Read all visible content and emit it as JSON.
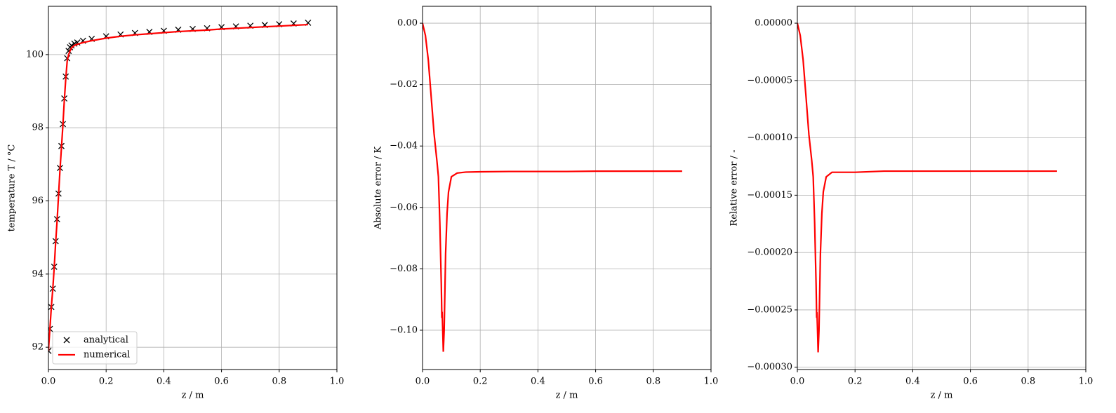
{
  "chart_data": [
    {
      "type": "line",
      "xlabel": "z / m",
      "ylabel": "temperature T / °C",
      "legend": "lower left",
      "grid": true,
      "xlim": [
        0,
        1
      ],
      "ylim": [
        91.39,
        101.32
      ],
      "xticks": [
        {
          "value": 0,
          "label": "0.0"
        },
        {
          "value": 0.2,
          "label": "0.2"
        },
        {
          "value": 0.4,
          "label": "0.4"
        },
        {
          "value": 0.6,
          "label": "0.6"
        },
        {
          "value": 0.8,
          "label": "0.8"
        },
        {
          "value": 1,
          "label": "1.0"
        }
      ],
      "yticks": [
        92,
        94,
        96,
        98,
        100
      ],
      "x": [
        0,
        0.005,
        0.01,
        0.015,
        0.02,
        0.025,
        0.03,
        0.035,
        0.04,
        0.045,
        0.05,
        0.055,
        0.06,
        0.065,
        0.07,
        0.075,
        0.08,
        0.09,
        0.1,
        0.12,
        0.15,
        0.2,
        0.25,
        0.3,
        0.35,
        0.4,
        0.45,
        0.5,
        0.55,
        0.6,
        0.65,
        0.7,
        0.75,
        0.8,
        0.85,
        0.9
      ],
      "series": [
        {
          "name": "analytical",
          "color": "#000000",
          "marker": "x",
          "values": [
            91.9,
            92.5,
            93.1,
            93.6,
            94.2,
            94.9,
            95.5,
            96.2,
            96.9,
            97.5,
            98.1,
            98.8,
            99.4,
            99.9,
            100.1,
            100.2,
            100.25,
            100.3,
            100.33,
            100.38,
            100.43,
            100.5,
            100.55,
            100.59,
            100.62,
            100.65,
            100.68,
            100.7,
            100.72,
            100.75,
            100.77,
            100.79,
            100.81,
            100.83,
            100.85,
            100.87
          ]
        },
        {
          "name": "numerical",
          "color": "#ff0000",
          "values": [
            91.9,
            92.49,
            93.09,
            93.58,
            94.17,
            94.86,
            95.45,
            96.14,
            96.84,
            97.44,
            98.05,
            98.74,
            99.33,
            99.82,
            100.0,
            100.1,
            100.18,
            100.25,
            100.28,
            100.33,
            100.38,
            100.45,
            100.5,
            100.54,
            100.57,
            100.6,
            100.63,
            100.65,
            100.67,
            100.7,
            100.72,
            100.74,
            100.76,
            100.78,
            100.8,
            100.82
          ]
        }
      ]
    },
    {
      "type": "line",
      "xlabel": "z / m",
      "ylabel": "Absolute error / K",
      "grid": true,
      "xlim": [
        0,
        1
      ],
      "ylim": [
        -0.1128,
        0.0055
      ],
      "xticks": [
        {
          "value": 0,
          "label": "0.0"
        },
        {
          "value": 0.2,
          "label": "0.2"
        },
        {
          "value": 0.4,
          "label": "0.4"
        },
        {
          "value": 0.6,
          "label": "0.6"
        },
        {
          "value": 0.8,
          "label": "0.8"
        },
        {
          "value": 1,
          "label": "1.0"
        }
      ],
      "yticks": [
        {
          "value": 0,
          "label": "0.00"
        },
        {
          "value": -0.02,
          "label": "−0.02"
        },
        {
          "value": -0.04,
          "label": "−0.04"
        },
        {
          "value": -0.06,
          "label": "−0.06"
        },
        {
          "value": -0.08,
          "label": "−0.08"
        },
        {
          "value": -0.1,
          "label": "−0.10"
        }
      ],
      "x": [
        0,
        0.01,
        0.02,
        0.03,
        0.04,
        0.05,
        0.055,
        0.06,
        0.065,
        0.067,
        0.068,
        0.07,
        0.072,
        0.075,
        0.08,
        0.085,
        0.09,
        0.1,
        0.12,
        0.15,
        0.2,
        0.3,
        0.4,
        0.5,
        0.6,
        0.7,
        0.8,
        0.9
      ],
      "series": [
        {
          "color": "#ff0000",
          "values": [
            0,
            -0.004,
            -0.012,
            -0.024,
            -0.036,
            -0.045,
            -0.05,
            -0.065,
            -0.085,
            -0.096,
            -0.094,
            -0.1,
            -0.107,
            -0.1,
            -0.075,
            -0.062,
            -0.055,
            -0.05,
            -0.0488,
            -0.0485,
            -0.0484,
            -0.0483,
            -0.0483,
            -0.0483,
            -0.0482,
            -0.0482,
            -0.0482,
            -0.0482
          ]
        }
      ]
    },
    {
      "type": "line",
      "xlabel": "z / m",
      "ylabel": "Relative error / -",
      "grid": true,
      "xlim": [
        0,
        1
      ],
      "ylim": [
        -0.000302,
        1.47e-05
      ],
      "xticks": [
        {
          "value": 0,
          "label": "0.0"
        },
        {
          "value": 0.2,
          "label": "0.2"
        },
        {
          "value": 0.4,
          "label": "0.4"
        },
        {
          "value": 0.6,
          "label": "0.6"
        },
        {
          "value": 0.8,
          "label": "0.8"
        },
        {
          "value": 1,
          "label": "1.0"
        }
      ],
      "yticks": [
        {
          "value": 0,
          "label": "0.00000"
        },
        {
          "value": -5e-05,
          "label": "−0.00005"
        },
        {
          "value": -0.0001,
          "label": "−0.00010"
        },
        {
          "value": -0.00015,
          "label": "−0.00015"
        },
        {
          "value": -0.0002,
          "label": "−0.00020"
        },
        {
          "value": -0.00025,
          "label": "−0.00025"
        },
        {
          "value": -0.0003,
          "label": "−0.00030"
        }
      ],
      "x": [
        0,
        0.01,
        0.02,
        0.03,
        0.04,
        0.05,
        0.055,
        0.06,
        0.065,
        0.067,
        0.068,
        0.07,
        0.072,
        0.075,
        0.08,
        0.085,
        0.09,
        0.1,
        0.12,
        0.15,
        0.2,
        0.3,
        0.4,
        0.5,
        0.6,
        0.7,
        0.8,
        0.9
      ],
      "series": [
        {
          "color": "#ff0000",
          "values": [
            0,
            -1.07e-05,
            -3.2e-05,
            -6.4e-05,
            -9.7e-05,
            -0.00012,
            -0.000134,
            -0.000174,
            -0.000228,
            -0.000257,
            -0.000252,
            -0.000268,
            -0.000287,
            -0.000268,
            -0.000201,
            -0.000166,
            -0.000147,
            -0.000134,
            -0.00013,
            -0.00013,
            -0.00013,
            -0.000129,
            -0.000129,
            -0.000129,
            -0.000129,
            -0.000129,
            -0.000129,
            -0.000129
          ]
        }
      ]
    }
  ]
}
